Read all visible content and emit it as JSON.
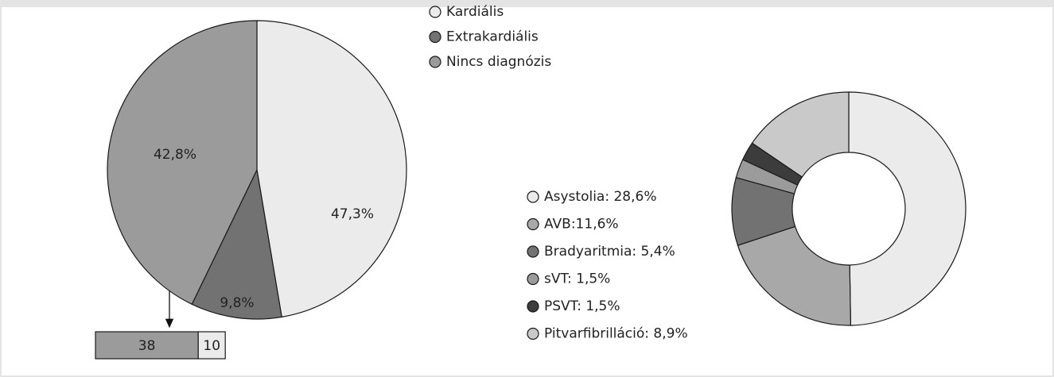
{
  "chart_data": [
    {
      "type": "pie",
      "categories": [
        "Kardiális",
        "Extrakardiális",
        "Nincs diagnózis"
      ],
      "values": [
        47.3,
        9.8,
        42.8
      ],
      "value_labels": [
        "47,3%",
        "9,8%",
        "42,8%"
      ],
      "colors": [
        "#ebebeb",
        "#727272",
        "#9b9b9b"
      ]
    },
    {
      "type": "donut",
      "categories": [
        "Asystolia: 28,6%",
        "AVB:11,6%",
        "Bradyaritmia: 5,4%",
        "sVT: 1,5%",
        "PSVT: 1,5%",
        "Pitvarfibrilláció: 8,9%"
      ],
      "values": [
        28.6,
        11.6,
        5.4,
        1.5,
        1.5,
        8.9
      ],
      "colors": [
        "#ebebeb",
        "#a8a8a8",
        "#727272",
        "#9b9b9b",
        "#3c3c3c",
        "#c9c9c9"
      ]
    },
    {
      "type": "stacked-bar",
      "values": [
        38,
        10
      ],
      "colors": [
        "#9b9b9b",
        "#ebebeb"
      ]
    }
  ]
}
